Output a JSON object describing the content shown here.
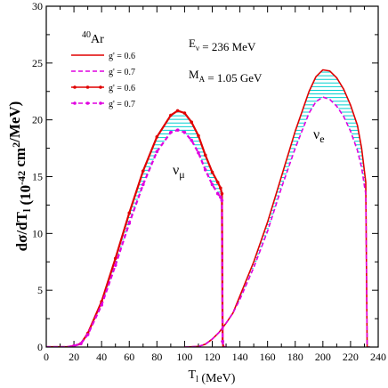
{
  "chart_data": {
    "type": "line",
    "title": "",
    "xlabel": "T_l (MeV)",
    "ylabel": "dσ/dT_l (10^-42 cm^2/MeV)",
    "xlim": [
      0,
      240
    ],
    "ylim": [
      0,
      30
    ],
    "xticks": [
      0,
      20,
      40,
      60,
      80,
      100,
      120,
      140,
      160,
      180,
      200,
      220,
      240
    ],
    "yticks": [
      0,
      5,
      10,
      15,
      20,
      25,
      30
    ],
    "target": "40Ar",
    "annotations": {
      "energy": "E_ν = 236 MeV",
      "axial_mass": "M_A = 1.05 GeV",
      "numu_label": "ν_μ",
      "nue_label": "ν_e"
    },
    "legend": {
      "position": "top-left",
      "entries": [
        {
          "label": "g' = 0.6",
          "color": "#e00000",
          "style": "solid"
        },
        {
          "label": "g' = 0.7",
          "color": "#e000e0",
          "style": "dashed"
        },
        {
          "label": "g' = 0.6",
          "color": "#e00000",
          "style": "solid-dots"
        },
        {
          "label": "g' = 0.7",
          "color": "#e000e0",
          "style": "dashed-dots"
        }
      ]
    },
    "band_color": "#00d0d0",
    "series": [
      {
        "channel": "numu",
        "g_prime": 0.6,
        "color": "#e00000",
        "style": "solid-dots",
        "x": [
          0,
          15,
          20,
          25,
          30,
          40,
          50,
          60,
          70,
          80,
          90,
          95,
          100,
          105,
          110,
          115,
          120,
          124,
          126,
          127,
          127.5,
          128,
          130
        ],
        "y": [
          0,
          0,
          0.1,
          0.3,
          1.2,
          4.0,
          7.8,
          11.8,
          15.5,
          18.5,
          20.4,
          20.8,
          20.6,
          19.8,
          18.6,
          16.9,
          15.4,
          14.5,
          14.0,
          13.5,
          0.5,
          0,
          0
        ]
      },
      {
        "channel": "numu",
        "g_prime": 0.7,
        "color": "#e000e0",
        "style": "dashed-dots",
        "x": [
          0,
          15,
          20,
          25,
          30,
          40,
          50,
          60,
          70,
          80,
          90,
          95,
          100,
          105,
          110,
          115,
          120,
          124,
          126,
          127,
          127.5,
          128,
          130
        ],
        "y": [
          0,
          0,
          0.1,
          0.3,
          1.1,
          3.7,
          7.2,
          10.9,
          14.3,
          17.2,
          18.9,
          19.1,
          18.9,
          18.2,
          17.1,
          15.6,
          14.3,
          13.5,
          13.2,
          12.9,
          0.5,
          0,
          0
        ]
      },
      {
        "channel": "nue",
        "g_prime": 0.6,
        "color": "#e00000",
        "style": "solid",
        "x": [
          100,
          110,
          115,
          120,
          125,
          130,
          135,
          140,
          150,
          160,
          170,
          180,
          190,
          195,
          200,
          205,
          210,
          215,
          220,
          225,
          228,
          230,
          231,
          232,
          234
        ],
        "y": [
          0,
          0.05,
          0.25,
          0.7,
          1.3,
          2.1,
          3.0,
          4.5,
          7.5,
          11.0,
          15.0,
          19.0,
          22.5,
          23.8,
          24.4,
          24.3,
          23.7,
          22.7,
          21.3,
          19.5,
          17.5,
          15.5,
          14.5,
          0,
          0
        ]
      },
      {
        "channel": "nue",
        "g_prime": 0.7,
        "color": "#e000e0",
        "style": "dashed",
        "x": [
          100,
          110,
          115,
          120,
          125,
          130,
          135,
          140,
          150,
          160,
          170,
          180,
          190,
          195,
          200,
          205,
          210,
          215,
          220,
          225,
          228,
          230,
          231,
          232,
          234
        ],
        "y": [
          0,
          0.05,
          0.25,
          0.7,
          1.3,
          2.1,
          3.0,
          4.2,
          7.0,
          10.2,
          14.0,
          17.5,
          20.6,
          21.6,
          22.0,
          21.8,
          21.2,
          20.3,
          19.0,
          17.3,
          15.8,
          14.2,
          13.5,
          0,
          0
        ]
      }
    ]
  }
}
